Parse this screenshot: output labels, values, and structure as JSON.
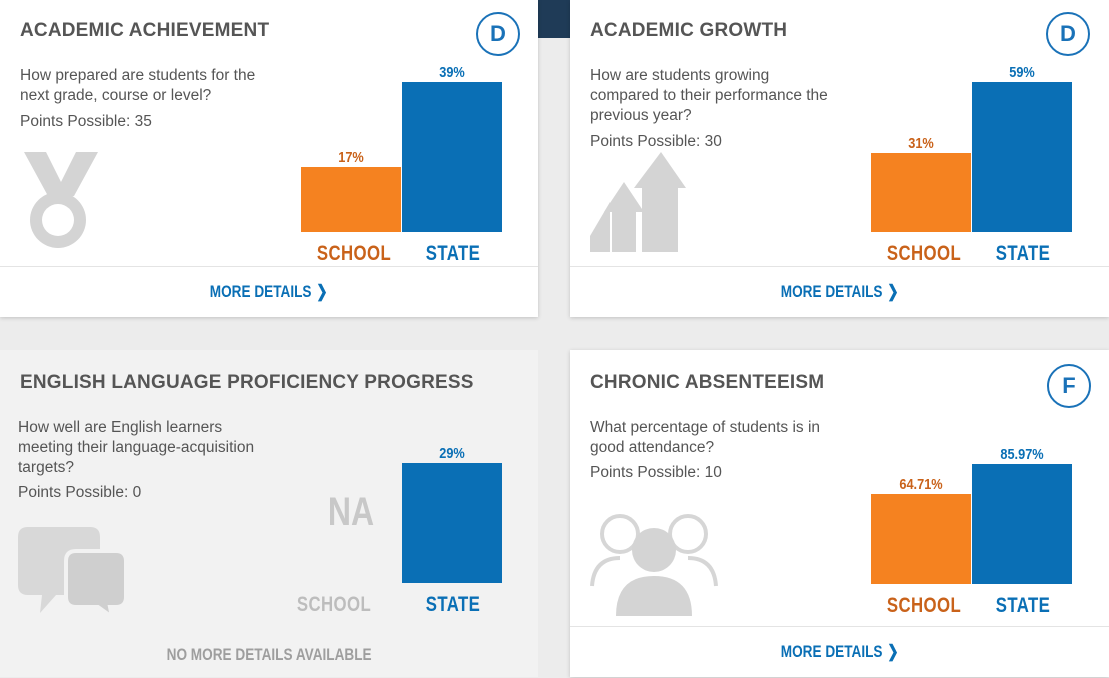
{
  "colors": {
    "school": "#f58220",
    "state": "#0a6fb5",
    "badge": "#1a72b8",
    "icon_gray": "#d4d4d4"
  },
  "cards": [
    {
      "title": "ACADEMIC ACHIEVEMENT",
      "grade": "D",
      "question": "How prepared are students for the next grade, course or level?",
      "points": "Points Possible: 35",
      "icon": "medal-icon",
      "footer": "MORE DETAILS",
      "school_label": "SCHOOL",
      "state_label": "STATE",
      "school_value": "17%",
      "state_value": "39%"
    },
    {
      "title": "ACADEMIC GROWTH",
      "grade": "D",
      "question": "How are students growing compared to their performance the previous year?",
      "points": "Points Possible: 30",
      "icon": "growth-arrows-icon",
      "footer": "MORE DETAILS",
      "school_label": "SCHOOL",
      "state_label": "STATE",
      "school_value": "31%",
      "state_value": "59%"
    },
    {
      "title": "ENGLISH LANGUAGE PROFICIENCY PROGRESS",
      "question": "How well are English learners meeting their language-acquisition targets?",
      "points": "Points Possible: 0",
      "icon": "speech-bubbles-icon",
      "footer": "NO MORE DETAILS AVAILABLE",
      "school_label": "SCHOOL",
      "state_label": "STATE",
      "school_value": "NA",
      "state_value": "29%"
    },
    {
      "title": "CHRONIC ABSENTEEISM",
      "grade": "F",
      "question": "What percentage of students is in good attendance?",
      "points": "Points Possible: 10",
      "icon": "people-group-icon",
      "footer": "MORE DETAILS",
      "school_label": "SCHOOL",
      "state_label": "STATE",
      "school_value": "64.71%",
      "state_value": "85.97%"
    }
  ],
  "chart_data": [
    {
      "type": "bar",
      "categories": [
        "SCHOOL",
        "STATE"
      ],
      "values": [
        17,
        39
      ]
    },
    {
      "type": "bar",
      "categories": [
        "SCHOOL",
        "STATE"
      ],
      "values": [
        31,
        59
      ]
    },
    {
      "type": "bar",
      "categories": [
        "SCHOOL",
        "STATE"
      ],
      "values": [
        null,
        29
      ]
    },
    {
      "type": "bar",
      "categories": [
        "SCHOOL",
        "STATE"
      ],
      "values": [
        64.71,
        85.97
      ]
    }
  ]
}
